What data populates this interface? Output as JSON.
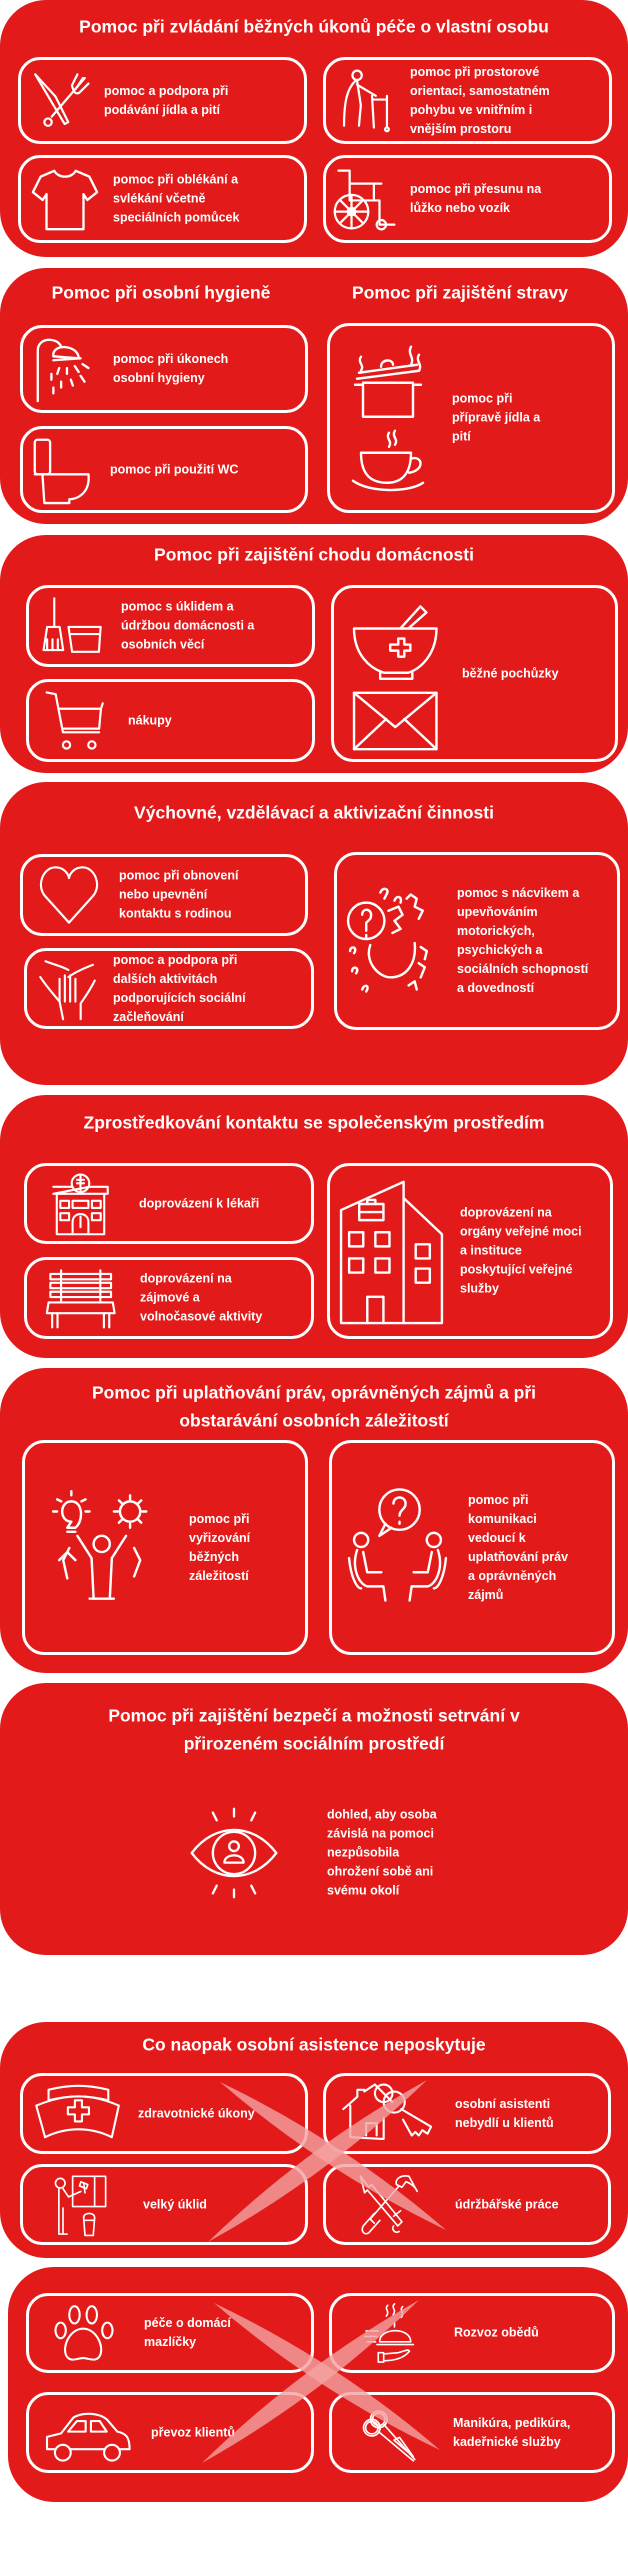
{
  "colors": {
    "background": "#e21a1a",
    "foreground": "#ffffff",
    "cross": "#f4a3a3"
  },
  "sections": [
    {
      "titles": [
        "Pomoc při zvládání běžných úkonů péče o vlastní osobu"
      ],
      "items": [
        {
          "text": "pomoc a podpora při\npodávání jídla a pití",
          "icon": "cutlery-icon"
        },
        {
          "text": "pomoc při prostorové\norientaci, samostatném\npohybu ve vnitřním i\nvnějším prostoru",
          "icon": "walker-icon"
        },
        {
          "text": "pomoc při oblékání a\nsvlékání včetně\nspeciálních pomůcek",
          "icon": "shirt-icon"
        },
        {
          "text": "pomoc při přesunu na\nlůžko nebo vozík",
          "icon": "wheelchair-icon"
        }
      ]
    },
    {
      "titles": [
        "Pomoc při osobní hygieně",
        "Pomoc při zajištění stravy"
      ],
      "items": [
        {
          "text": "pomoc při úkonech\nosobní hygieny",
          "icon": "shower-icon"
        },
        {
          "text": "pomoc při použití WC",
          "icon": "toilet-icon"
        },
        {
          "text": "pomoc při\npřípravě jídla a\npití",
          "icon": "pot-and-cup-icon"
        }
      ]
    },
    {
      "titles": [
        "Pomoc při zajištění chodu domácnosti"
      ],
      "items": [
        {
          "text": "pomoc s úklidem a\núdržbou domácnosti a\nosobních věcí",
          "icon": "broom-bucket-icon"
        },
        {
          "text": "nákupy",
          "icon": "shopping-cart-icon"
        },
        {
          "text": "běžné pochůzky",
          "icon": "pharmacy-and-mail-icon"
        }
      ]
    },
    {
      "titles": [
        "Výchovné, vzdělávací a aktivizační činnosti"
      ],
      "items": [
        {
          "text": "pomoc při obnovení\nnebo upevnění\nkontaktu s rodinou",
          "icon": "heart-icon"
        },
        {
          "text": "pomoc a podpora při\ndalších aktivitách\npodporujících sociální\nzačleňování",
          "icon": "hands-icon"
        },
        {
          "text": "pomoc s nácvikem a\nupevňováním\nmotorických,\npsychických a\nsociálních schopností\na dovedností",
          "icon": "head-puzzle-icon"
        }
      ]
    },
    {
      "titles": [
        "Zprostředkování kontaktu se společenským prostředím"
      ],
      "items": [
        {
          "text": "doprovázení k lékaři",
          "icon": "hospital-icon"
        },
        {
          "text": "doprovázení na\nzájmové a\nvolnočasové aktivity",
          "icon": "bench-icon"
        },
        {
          "text": "doprovázení na\norgány veřejné moci\na instituce\nposkytující veřejné\nslužby",
          "icon": "office-building-icon"
        }
      ]
    },
    {
      "titles": [
        "Pomoc při uplatňování práv, oprávněných zájmů a při",
        "obstarávání osobních záležitostí"
      ],
      "items": [
        {
          "text": "pomoc při\nvyřizování\nběžných\nzáležitostí",
          "icon": "ideas-person-icon"
        },
        {
          "text": "pomoc při\nkomunikaci\nvedoucí k\nuplatňování práv\na oprávněných\nzájmů",
          "icon": "conversation-icon"
        }
      ]
    },
    {
      "titles": [
        "Pomoc při zajištění bezpečí a možnosti setrvání v",
        "přirozeném sociálním prostředí"
      ],
      "items": [
        {
          "text": "dohled, aby osoba\nzávislá na pomoci\nnezpůsobila\nohrožení sobě ani\nsvému okolí",
          "icon": "eye-icon"
        }
      ]
    },
    {
      "titles": [
        "Co naopak osobní asistence neposkytuje"
      ],
      "items": [
        {
          "text": "zdravotnické úkony",
          "icon": "nurse-cap-icon"
        },
        {
          "text": "osobní asistenti\nnebydlí u klientů",
          "icon": "house-keys-icon"
        },
        {
          "text": "velký úklid",
          "icon": "window-cleaning-icon"
        },
        {
          "text": "údržbářské práce",
          "icon": "tools-icon"
        }
      ]
    },
    {
      "titles": [],
      "items": [
        {
          "text": "péče o domácí\nmazlíčky",
          "icon": "paw-icon"
        },
        {
          "text": "Rozvoz obědů",
          "icon": "cloche-icon"
        },
        {
          "text": "převoz klientů",
          "icon": "car-icon"
        },
        {
          "text": "Manikúra, pedikúra,\nkadeřnické služby",
          "icon": "scissors-icon"
        }
      ]
    }
  ]
}
